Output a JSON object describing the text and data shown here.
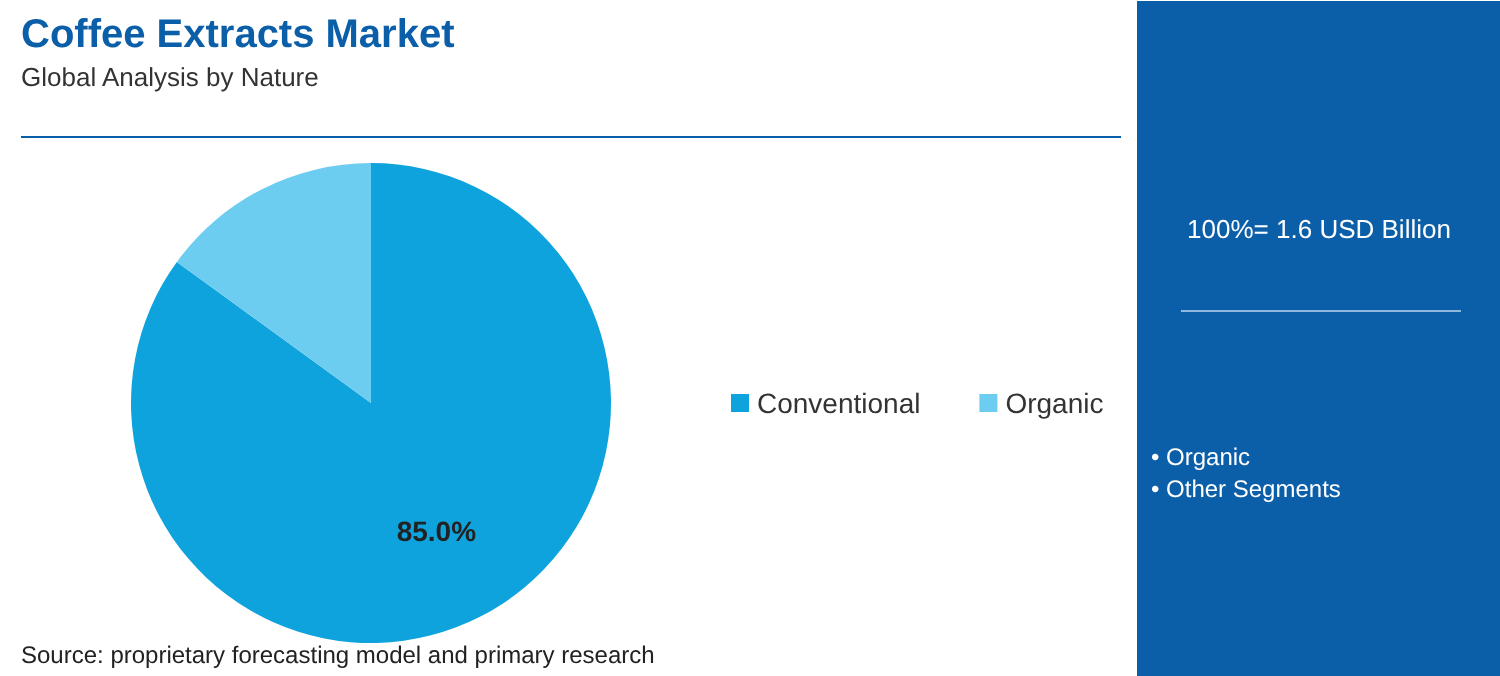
{
  "chart_data": {
    "type": "pie",
    "title": "Coffee Extracts Market",
    "subtitle": "Global Analysis by Nature",
    "categories": [
      "Conventional",
      "Organic"
    ],
    "values": [
      85,
      15
    ],
    "colors": [
      "#0ea3dc",
      "#6dcdf0"
    ],
    "value_labels": [
      "85.0%",
      null
    ],
    "legend": "right",
    "annotations": [
      "100%= 1.6 USD Billion",
      "• Organic",
      "• Other Segments",
      "Source: proprietary forecasting model and primary research"
    ]
  }
}
